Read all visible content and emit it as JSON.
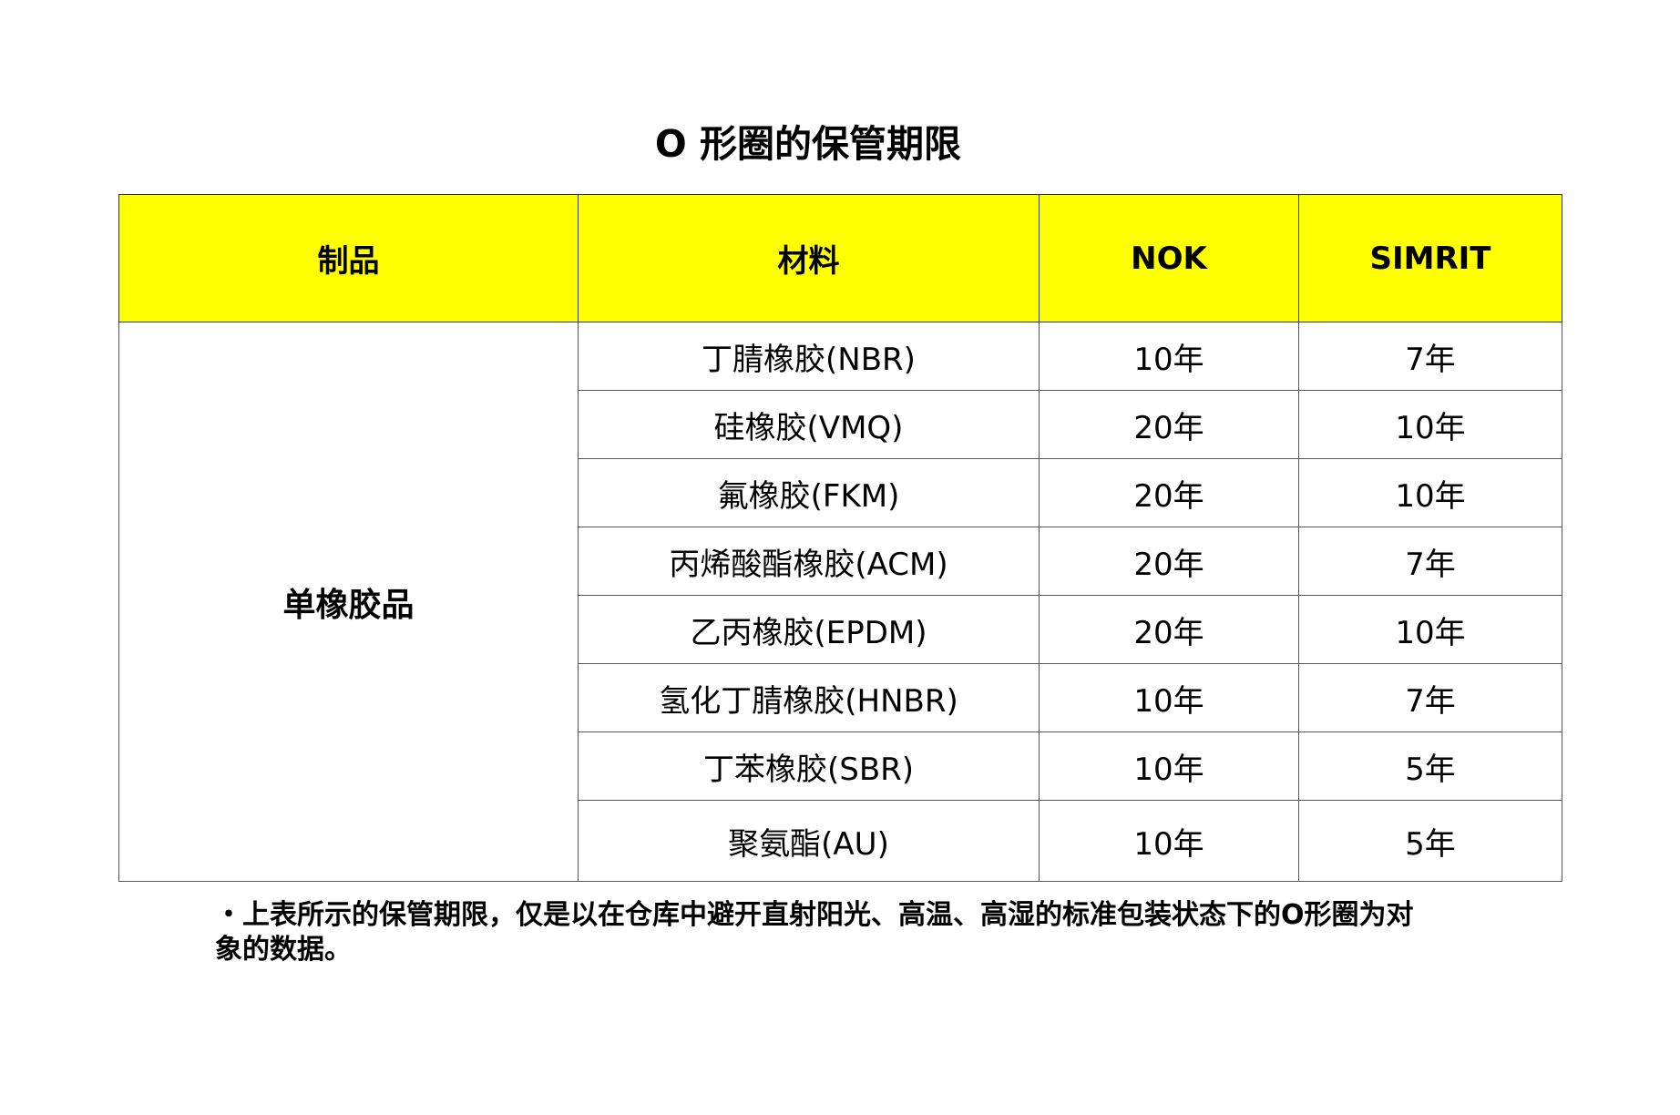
{
  "title": "O 形圈的保管期限",
  "table": {
    "headers": [
      "制品",
      "材料",
      "NOK",
      "SIMRIT"
    ],
    "product": "单橡胶品",
    "rows": [
      {
        "material": "丁腈橡胶(NBR)",
        "nok": "10年",
        "simrit": "7年"
      },
      {
        "material": "硅橡胶(VMQ)",
        "nok": "20年",
        "simrit": "10年"
      },
      {
        "material": "氟橡胶(FKM)",
        "nok": "20年",
        "simrit": "10年"
      },
      {
        "material": "丙烯酸酯橡胶(ACM)",
        "nok": "20年",
        "simrit": "7年"
      },
      {
        "material": "乙丙橡胶(EPDM)",
        "nok": "20年",
        "simrit": "10年"
      },
      {
        "material": "氢化丁腈橡胶(HNBR)",
        "nok": "10年",
        "simrit": "7年"
      },
      {
        "material": "丁苯橡胶(SBR)",
        "nok": "10年",
        "simrit": "5年"
      },
      {
        "material": "聚氨酯(AU)",
        "nok": "10年",
        "simrit": "5年"
      }
    ],
    "header_color": "#ffff00"
  },
  "note": "・上表所示的保管期限，仅是以在仓库中避开直射阳光、高温、高湿的标准包装状态下的O形圈为对象的数据。"
}
